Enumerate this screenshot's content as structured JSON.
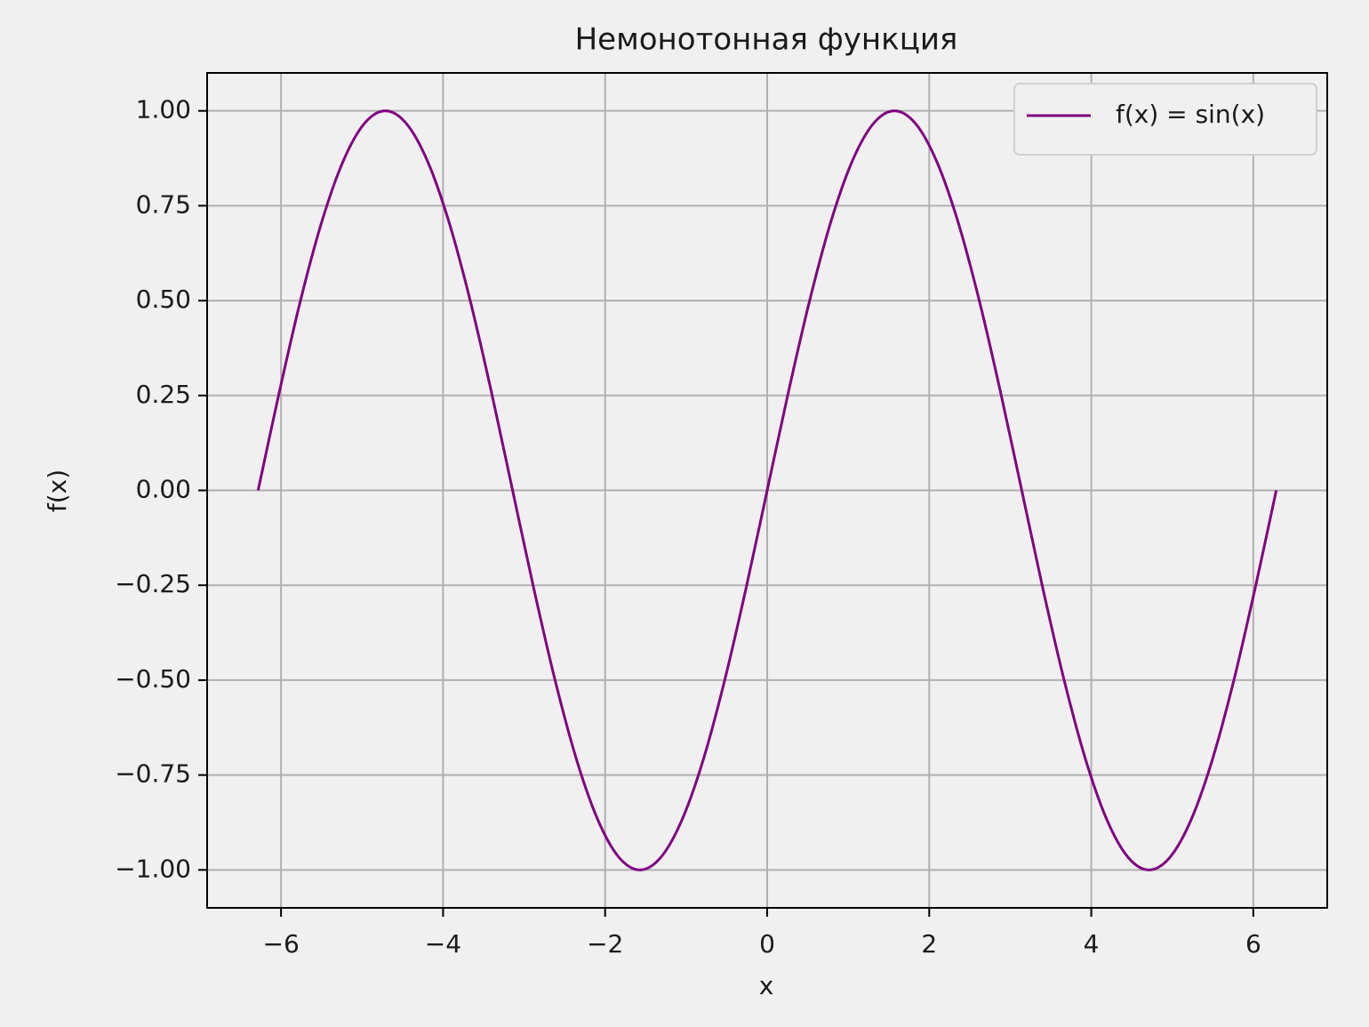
{
  "chart_data": {
    "type": "line",
    "title": "Немонотонная функция",
    "xlabel": "x",
    "ylabel": "f(x)",
    "x": [
      -6.283,
      -6.021,
      -5.76,
      -5.498,
      -5.236,
      -4.974,
      -4.712,
      -4.451,
      -4.189,
      -3.927,
      -3.665,
      -3.403,
      -3.142,
      -2.88,
      -2.618,
      -2.356,
      -2.094,
      -1.833,
      -1.571,
      -1.309,
      -1.047,
      -0.785,
      -0.524,
      -0.262,
      0,
      0.262,
      0.524,
      0.785,
      1.047,
      1.309,
      1.571,
      1.833,
      2.094,
      2.356,
      2.618,
      2.88,
      3.142,
      3.403,
      3.665,
      3.927,
      4.189,
      4.451,
      4.712,
      4.974,
      5.236,
      5.498,
      5.76,
      6.021,
      6.283
    ],
    "series": [
      {
        "name": "f(x) = sin(x)",
        "color": "#800080",
        "values": [
          0,
          0.259,
          0.5,
          0.707,
          0.866,
          0.966,
          1,
          0.966,
          0.866,
          0.707,
          0.5,
          0.259,
          0,
          -0.259,
          -0.5,
          -0.707,
          -0.866,
          -0.966,
          -1,
          -0.966,
          -0.866,
          -0.707,
          -0.5,
          -0.259,
          0,
          0.259,
          0.5,
          0.707,
          0.866,
          0.966,
          1,
          0.966,
          0.866,
          0.707,
          0.5,
          0.259,
          0,
          -0.259,
          -0.5,
          -0.707,
          -0.866,
          -0.966,
          -1,
          -0.966,
          -0.866,
          -0.707,
          -0.5,
          -0.259,
          0
        ]
      }
    ],
    "xlim": [
      -6.912,
      6.912
    ],
    "xticks": [
      {
        "value": -6,
        "label": "−6"
      },
      {
        "value": -4,
        "label": "−4"
      },
      {
        "value": -2,
        "label": "−2"
      },
      0,
      2,
      4,
      6
    ],
    "ylim": [
      -1.1,
      1.1
    ],
    "yticks": [
      {
        "value": -1,
        "label": "−1.00"
      },
      {
        "value": -0.75,
        "label": "−0.75"
      },
      {
        "value": -0.5,
        "label": "−0.50"
      },
      {
        "value": -0.25,
        "label": "−0.25"
      },
      {
        "value": 0,
        "label": "0.00"
      },
      0.25,
      {
        "value": 0.5,
        "label": "0.50"
      },
      0.75,
      {
        "value": 1,
        "label": "1.00"
      }
    ],
    "grid": true,
    "legend": "upper-right"
  }
}
